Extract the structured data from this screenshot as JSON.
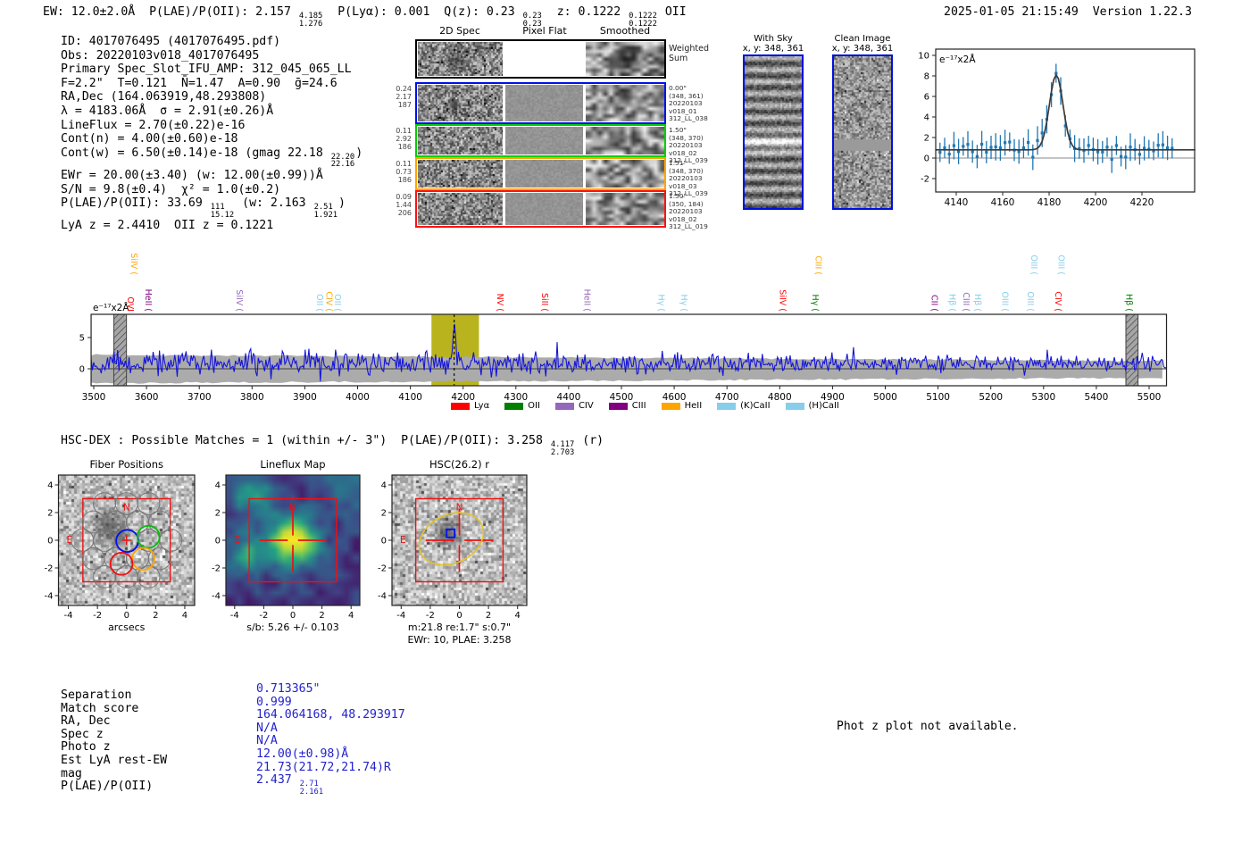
{
  "header": {
    "stats_segments": [
      {
        "t": "EW: 12.0±2.0Å  P(LAE)/P(OII): 2.157 "
      },
      {
        "f": [
          "4.185",
          "1.276"
        ]
      },
      {
        "t": "  P(Lyα): 0.001  Q(z): 0.23 "
      },
      {
        "f": [
          "0.23",
          "0.23"
        ]
      },
      {
        "t": "  z: 0.1222 "
      },
      {
        "f": [
          "0.1222",
          "0.1222"
        ]
      },
      {
        "t": " OII"
      }
    ],
    "timestamp_version": "2025-01-05 21:15:49  Version 1.22.3"
  },
  "info_lines": [
    [
      {
        "t": "ID: 4017076495 (4017076495.pdf)"
      }
    ],
    [
      {
        "t": "Obs: 20220103v018_4017076495"
      }
    ],
    [
      {
        "t": "Primary Spec_Slot_IFU_AMP: 312_045_065_LL"
      }
    ],
    [
      {
        "t": "F=2.2\"  T=0.121  N̄=1.47  A=0.90  ḡ=24.6"
      }
    ],
    [
      {
        "t": "RA,Dec (164.063919,48.293808)"
      }
    ],
    [
      {
        "t": "λ = 4183.06Å  σ = 2.91(±0.26)Å"
      }
    ],
    [
      {
        "t": "LineFlux = 2.70(±0.22)e-16"
      }
    ],
    [
      {
        "t": "Cont(n) = 4.00(±0.60)e-18"
      }
    ],
    [
      {
        "t": "Cont(w) = 6.50(±0.14)e-18 (gmag 22.18 "
      },
      {
        "f": [
          "22.20",
          "22.16"
        ]
      },
      {
        "t": ")"
      }
    ],
    [
      {
        "t": "EWr = 20.00(±3.40) (w: 12.00(±0.99))Å"
      }
    ],
    [
      {
        "t": "S/N = 9.8(±0.4)  χ² = 1.0(±0.2)"
      }
    ],
    [
      {
        "t": "P(LAE)/P(OII): 33.69 "
      },
      {
        "f": [
          "111",
          "15.12"
        ]
      },
      {
        "t": " (w: 2.163 "
      },
      {
        "f": [
          "2.51",
          "1.921"
        ]
      },
      {
        "t": ")"
      }
    ],
    [
      {
        "t": "LyA z = 2.4410  OII z = 0.1221"
      }
    ]
  ],
  "spec2d": {
    "column_headers": [
      "2D Spec",
      "Pixel Flat",
      "Smoothed"
    ],
    "weighted_sum_label": [
      "Weighted",
      "Sum"
    ],
    "rows": [
      {
        "name": "weighted-sum",
        "border_color": "#000000",
        "left_values": [],
        "annotations": []
      },
      {
        "name": "exposure-1",
        "border_color": "#0010ee",
        "left_values": [
          "0.24",
          "2.17",
          "187"
        ],
        "annotations": [
          "0.00\"",
          "(348, 361)",
          "20220103",
          "v018_01",
          "312_LL_038"
        ]
      },
      {
        "name": "exposure-2",
        "border_color": "#00d000",
        "left_values": [
          "0.11",
          "2.92",
          "186"
        ],
        "annotations": [
          "1.50\"",
          "(348, 370)",
          "20220103",
          "v018_02",
          "312_LL_039"
        ]
      },
      {
        "name": "exposure-3",
        "border_color": "#ffa500",
        "left_values": [
          "0.11",
          "0.73",
          "186"
        ],
        "annotations": [
          "1.51\"",
          "(348, 370)",
          "20220103",
          "v018_03",
          "312_LL_039"
        ]
      },
      {
        "name": "exposure-4",
        "border_color": "#ff1111",
        "left_values": [
          "0.09",
          "1.44",
          "206"
        ],
        "annotations": [
          "1.50\"",
          "(350, 184)",
          "20220103",
          "v018_02",
          "312_LL_019"
        ]
      }
    ]
  },
  "sky_panels": {
    "with_sky": {
      "title": "With Sky",
      "coords": "x, y: 348, 361"
    },
    "clean_image": {
      "title": "Clean Image",
      "coords": "x, y: 348, 361"
    }
  },
  "chart_data": [
    {
      "id": "emission-line-fit",
      "type": "scatter",
      "inset_label": "e⁻¹⁷x2Å",
      "xlim": [
        4131,
        4243
      ],
      "ylim": [
        -3.3,
        10.6
      ],
      "x_ticks": [
        4140,
        4160,
        4180,
        4200,
        4220
      ],
      "y_ticks": [
        -2,
        0,
        2,
        4,
        6,
        8,
        10
      ],
      "gaussian_fit": {
        "center": 4183.06,
        "sigma": 2.91,
        "peak": 8.1,
        "continuum": 0.8
      },
      "point_color": "#1f77b4",
      "fit_color": "#3a3a3a"
    },
    {
      "id": "full-spectrum",
      "type": "line",
      "inset_label": "e⁻¹⁷x2Å",
      "xlim": [
        3495,
        5533
      ],
      "ylim": [
        -2.7,
        8.7
      ],
      "x_ticks": [
        3500,
        3600,
        3700,
        3800,
        3900,
        4000,
        4100,
        4200,
        4300,
        4400,
        4500,
        4600,
        4700,
        4800,
        4900,
        5000,
        5100,
        5200,
        5300,
        5400,
        5500
      ],
      "y_ticks": [
        0,
        5
      ],
      "emission_line_center": 4183.06,
      "continuum_level": 0.85,
      "highlight_band": [
        4140,
        4230
      ],
      "masked_bands": [
        [
          3538,
          3562
        ],
        [
          5456,
          5479
        ]
      ],
      "line_color": "#1414dd",
      "noise_band_color": "#ababab",
      "highlight_color": "#b9b41e",
      "legend": [
        {
          "label": "Lyα",
          "color": "#ff0000"
        },
        {
          "label": "OII",
          "color": "#008000"
        },
        {
          "label": "CIV",
          "color": "#9467bd"
        },
        {
          "label": "CIII",
          "color": "#800080"
        },
        {
          "label": "HeII",
          "color": "#ffa500"
        },
        {
          "label": "(K)CaII",
          "color": "#87ceeb"
        },
        {
          "label": "(H)CaII",
          "color": "#87ceeb"
        }
      ],
      "line_labels": [
        {
          "wavelength": 3564,
          "text": "OVI",
          "color": "#ff0000",
          "row": 0
        },
        {
          "wavelength": 3571,
          "text": "SiIV (",
          "color": "#ffa500",
          "row": 1
        },
        {
          "wavelength": 3598,
          "text": "HeII (",
          "color": "#800080",
          "row": 0
        },
        {
          "wavelength": 3771,
          "text": "SiIV (",
          "color": "#9467bd",
          "row": 0
        },
        {
          "wavelength": 3923,
          "text": "OII (",
          "color": "#87ceeb",
          "row": 0
        },
        {
          "wavelength": 3941,
          "text": "CIV (",
          "color": "#ffa500",
          "row": 0
        },
        {
          "wavelength": 3957,
          "text": "OII (",
          "color": "#87ceeb",
          "row": 0
        },
        {
          "wavelength": 4265,
          "text": "NV (",
          "color": "#ff0000",
          "row": 0
        },
        {
          "wavelength": 4349,
          "text": "SiII (",
          "color": "#ff0000",
          "row": 0
        },
        {
          "wavelength": 4430,
          "text": "HeII (",
          "color": "#9467bd",
          "row": 0
        },
        {
          "wavelength": 4570,
          "text": "Hγ (",
          "color": "#87ceeb",
          "row": 0
        },
        {
          "wavelength": 4613,
          "text": "Hγ (",
          "color": "#87ceeb",
          "row": 0
        },
        {
          "wavelength": 4800,
          "text": "SiIV (",
          "color": "#ff0000",
          "row": 0
        },
        {
          "wavelength": 4862,
          "text": "Hγ (",
          "color": "#008000",
          "row": 0
        },
        {
          "wavelength": 4868,
          "text": "CIII (",
          "color": "#ffa500",
          "row": 1
        },
        {
          "wavelength": 5088,
          "text": "CII (",
          "color": "#800080",
          "row": 0
        },
        {
          "wavelength": 5122,
          "text": "Hβ (",
          "color": "#87ceeb",
          "row": 0
        },
        {
          "wavelength": 5148,
          "text": "CIII (",
          "color": "#9467bd",
          "row": 0
        },
        {
          "wavelength": 5170,
          "text": "Hβ (",
          "color": "#87ceeb",
          "row": 0
        },
        {
          "wavelength": 5222,
          "text": "OIII (",
          "color": "#87ceeb",
          "row": 0
        },
        {
          "wavelength": 5270,
          "text": "OIII (",
          "color": "#87ceeb",
          "row": 0
        },
        {
          "wavelength": 5277,
          "text": "OIII (",
          "color": "#87ceeb",
          "row": 1
        },
        {
          "wavelength": 5322,
          "text": "CIV (",
          "color": "#ff0000",
          "row": 0
        },
        {
          "wavelength": 5328,
          "text": "OIII (",
          "color": "#87ceeb",
          "row": 1
        },
        {
          "wavelength": 5457,
          "text": "Hβ (",
          "color": "#008000",
          "row": 0
        }
      ]
    }
  ],
  "hsc_section": {
    "header_segments": [
      {
        "t": "HSC-DEX : Possible Matches = 1 (within +/- 3\")  P(LAE)/P(OII): 3.258 "
      },
      {
        "f": [
          "4.117",
          "2.703"
        ]
      },
      {
        "t": " (r)"
      }
    ],
    "panels": [
      {
        "title": "Fiber Positions",
        "xlabel": "arcsecs",
        "xlabel2": "",
        "x_ticks": [
          -4,
          -2,
          0,
          2,
          4
        ],
        "y_ticks": [
          4,
          2,
          0,
          -2,
          -4
        ],
        "compass_n": "N",
        "compass_e": "E"
      },
      {
        "title": "Lineflux Map",
        "xlabel": "s/b: 5.26 +/- 0.103",
        "xlabel2": "",
        "x_ticks": [
          -4,
          -2,
          0,
          2,
          4
        ],
        "y_ticks": [
          4,
          2,
          0,
          -2,
          -4
        ],
        "compass_n": "N",
        "compass_e": "E"
      },
      {
        "title": "HSC(26.2) r",
        "xlabel": "m:21.8 re:1.7\" s:0.7\"",
        "xlabel2": "EWr: 10, PLAE: 3.258",
        "x_ticks": [
          -4,
          -2,
          0,
          2,
          4
        ],
        "y_ticks": [
          4,
          2,
          0,
          -2,
          -4
        ],
        "compass_n": "N",
        "compass_e": "E"
      }
    ]
  },
  "match_table": {
    "rows": [
      {
        "label": "Separation",
        "value": [
          {
            "t": "0.713365\""
          }
        ]
      },
      {
        "label": "Match score",
        "value": [
          {
            "t": "0.999"
          }
        ]
      },
      {
        "label": "RA, Dec",
        "value": [
          {
            "t": "164.064168, 48.293917"
          }
        ]
      },
      {
        "label": "Spec z",
        "value": [
          {
            "t": "N/A"
          }
        ]
      },
      {
        "label": "Photo z",
        "value": [
          {
            "t": "N/A"
          }
        ]
      },
      {
        "label": "Est LyA rest-EW",
        "value": [
          {
            "t": "12.00(±0.98)Å"
          }
        ]
      },
      {
        "label": "mag",
        "value": [
          {
            "t": "21.73(21.72,21.74)R"
          }
        ]
      },
      {
        "label": "P(LAE)/P(OII)",
        "value": [
          {
            "t": "2.437 "
          },
          {
            "f": [
              "2.71",
              "2.161"
            ]
          }
        ]
      }
    ]
  },
  "photz_note": "Phot z plot not available."
}
